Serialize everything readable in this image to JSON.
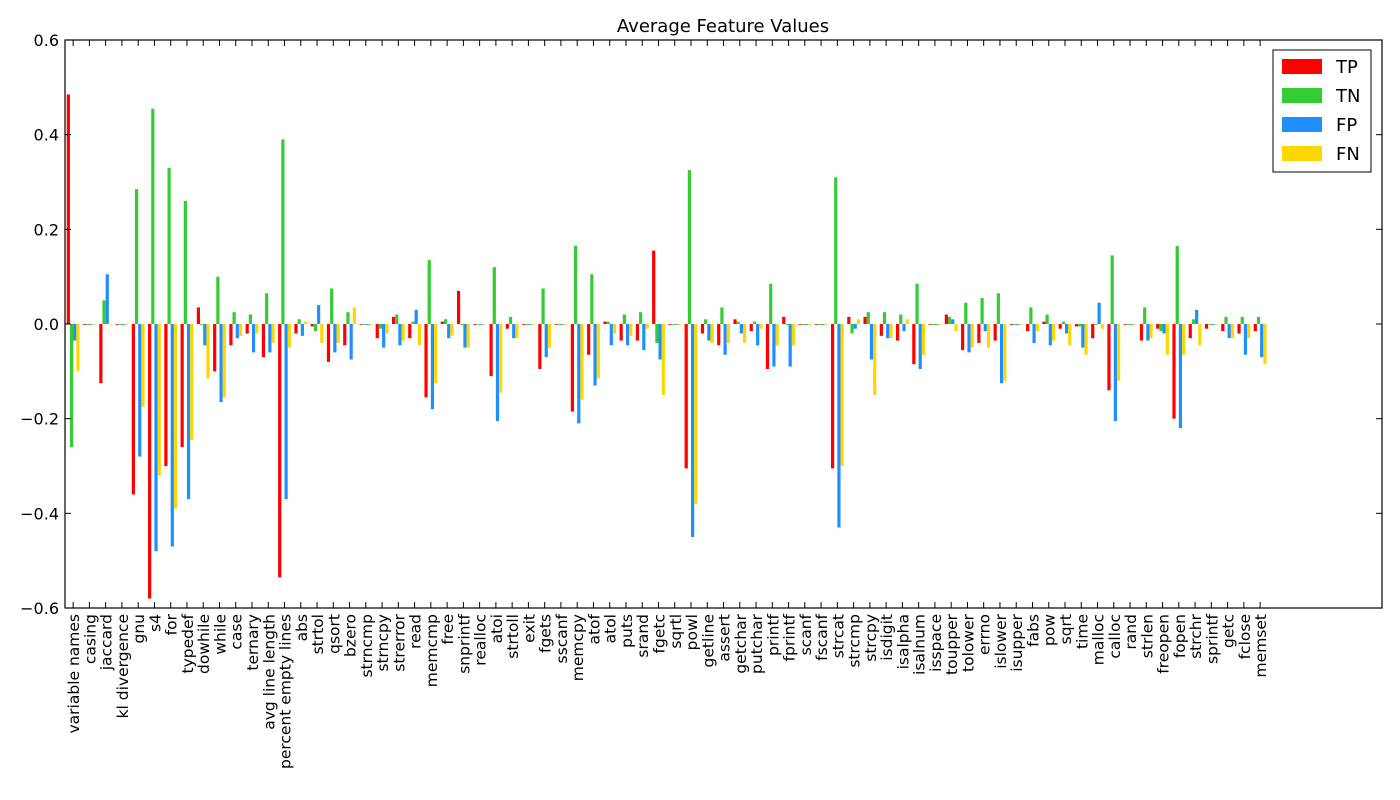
{
  "chart_data": {
    "type": "bar",
    "title": "Average Feature Values",
    "xlabel": "",
    "ylabel": "",
    "ylim": [
      -0.6,
      0.6
    ],
    "yticks": [
      -0.6,
      -0.4,
      -0.2,
      0.0,
      0.2,
      0.4,
      0.6
    ],
    "ytick_labels": [
      "−0.6",
      "−0.4",
      "−0.2",
      "0.0",
      "0.2",
      "0.4",
      "0.6"
    ],
    "grid": false,
    "legend_position": "top-right",
    "categories": [
      "variable names",
      "casing",
      "jaccard",
      "kl divergence",
      "gnu",
      "s4",
      "for",
      "typedef",
      "dowhile",
      "while",
      "case",
      "ternary",
      "avg line length",
      "percent empty lines",
      "abs",
      "strtol",
      "qsort",
      "bzero",
      "strncmp",
      "strncpy",
      "strerror",
      "read",
      "memcmp",
      "free",
      "snprintf",
      "realloc",
      "atoi",
      "strtoll",
      "exit",
      "fgets",
      "sscanf",
      "memcpy",
      "atof",
      "atol",
      "puts",
      "srand",
      "fgetc",
      "sqrtl",
      "powl",
      "getline",
      "assert",
      "getchar",
      "putchar",
      "printf",
      "fprintf",
      "scanf",
      "fscanf",
      "strcat",
      "strcmp",
      "strcpy",
      "isdigit",
      "isalpha",
      "isalnum",
      "isspace",
      "toupper",
      "tolower",
      "errno",
      "islower",
      "isupper",
      "fabs",
      "pow",
      "sqrt",
      "time",
      "malloc",
      "calloc",
      "rand",
      "strlen",
      "freopen",
      "fopen",
      "strchr",
      "sprintf",
      "getc",
      "fclose",
      "memset"
    ],
    "series": [
      {
        "name": "TP",
        "color": "#ff0000",
        "values": [
          0.485,
          0,
          -0.125,
          0,
          -0.36,
          -0.58,
          -0.3,
          -0.26,
          0.035,
          -0.1,
          -0.045,
          -0.02,
          -0.07,
          -0.535,
          -0.02,
          -0.005,
          -0.08,
          -0.045,
          0,
          -0.03,
          0.015,
          -0.03,
          -0.155,
          0.005,
          0.07,
          0,
          -0.11,
          -0.01,
          0,
          -0.095,
          0,
          -0.185,
          -0.065,
          0.005,
          -0.035,
          -0.035,
          0.155,
          0,
          -0.305,
          -0.02,
          -0.045,
          0.01,
          -0.015,
          -0.095,
          0.015,
          0,
          0,
          -0.305,
          0.015,
          0.015,
          -0.025,
          -0.035,
          -0.085,
          0,
          0.02,
          -0.055,
          -0.04,
          -0.035,
          0,
          -0.015,
          0.005,
          -0.01,
          -0.005,
          -0.03,
          -0.14,
          0,
          -0.035,
          -0.01,
          -0.2,
          -0.03,
          -0.01,
          -0.015,
          -0.02,
          -0.015
        ]
      },
      {
        "name": "TN",
        "color": "#33cc33",
        "values": [
          -0.26,
          0,
          0.05,
          0,
          0.285,
          0.455,
          0.33,
          0.26,
          0,
          0.1,
          0.025,
          0.02,
          0.065,
          0.39,
          0.01,
          -0.015,
          0.075,
          0.025,
          0,
          -0.01,
          0.02,
          0.005,
          0.135,
          0.01,
          0,
          0,
          0.12,
          0.015,
          0,
          0.075,
          0,
          0.165,
          0.105,
          0.005,
          0.02,
          0.025,
          -0.04,
          0,
          0.325,
          0.01,
          0.035,
          0.005,
          0.005,
          0.085,
          0,
          0,
          0,
          0.31,
          -0.02,
          0.025,
          0.025,
          0.02,
          0.085,
          0,
          0.015,
          0.045,
          0.055,
          0.065,
          0,
          0.035,
          0.02,
          0.005,
          -0.005,
          0,
          0.145,
          0,
          0.035,
          -0.015,
          0.165,
          0.01,
          0,
          0.015,
          0.015,
          0.015
        ]
      },
      {
        "name": "FP",
        "color": "#1e8fff",
        "values": [
          -0.035,
          0,
          0.105,
          0,
          -0.28,
          -0.48,
          -0.47,
          -0.37,
          -0.045,
          -0.165,
          -0.03,
          -0.06,
          -0.06,
          -0.37,
          -0.025,
          0.04,
          -0.06,
          -0.075,
          0,
          -0.05,
          -0.045,
          0.03,
          -0.18,
          -0.03,
          -0.05,
          0,
          -0.205,
          -0.03,
          0,
          -0.07,
          0,
          -0.21,
          -0.13,
          -0.045,
          -0.045,
          -0.055,
          -0.075,
          0,
          -0.45,
          -0.035,
          -0.065,
          -0.02,
          -0.045,
          -0.09,
          -0.09,
          0,
          0,
          -0.43,
          -0.01,
          -0.075,
          -0.03,
          -0.015,
          -0.095,
          0,
          0.01,
          -0.06,
          -0.015,
          -0.125,
          0,
          -0.04,
          -0.045,
          -0.02,
          -0.05,
          0.045,
          -0.205,
          0,
          -0.035,
          -0.02,
          -0.22,
          0.03,
          0,
          -0.03,
          -0.065,
          -0.07
        ]
      },
      {
        "name": "FN",
        "color": "#ffd700",
        "values": [
          -0.1,
          0,
          0,
          0,
          -0.175,
          -0.32,
          -0.39,
          -0.245,
          -0.115,
          -0.155,
          -0.025,
          -0.02,
          -0.04,
          -0.05,
          0.005,
          -0.04,
          -0.04,
          0.035,
          0,
          -0.02,
          -0.035,
          -0.045,
          -0.125,
          -0.025,
          -0.05,
          0,
          -0.145,
          -0.03,
          0,
          -0.05,
          0,
          -0.16,
          -0.115,
          -0.02,
          -0.025,
          -0.01,
          -0.15,
          0,
          -0.38,
          -0.04,
          -0.04,
          -0.04,
          -0.01,
          -0.045,
          -0.045,
          0,
          0,
          -0.3,
          0.01,
          -0.15,
          -0.03,
          0.01,
          -0.065,
          0,
          -0.015,
          -0.05,
          -0.05,
          -0.12,
          0,
          -0.015,
          -0.035,
          -0.045,
          -0.065,
          -0.01,
          -0.12,
          0,
          -0.03,
          -0.065,
          -0.065,
          -0.045,
          0,
          -0.03,
          -0.03,
          -0.085
        ]
      }
    ]
  }
}
